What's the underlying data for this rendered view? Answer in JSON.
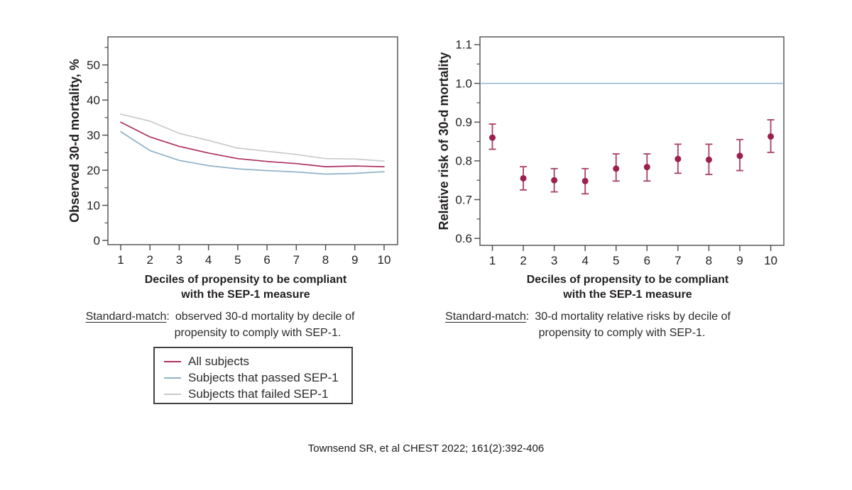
{
  "citation": "Townsend SR, et al CHEST 2022; 161(2):392-406",
  "captions": {
    "left": {
      "term": "Standard-match",
      "sep": ":",
      "text": "observed 30-d mortality by decile of",
      "line2": "propensity to comply with SEP-1."
    },
    "right": {
      "term": "Standard-match",
      "sep": ":",
      "text": "30-d mortality relative risks by decile of",
      "line2": "propensity to comply with SEP-1."
    }
  },
  "chart_data": [
    {
      "id": "observed-mortality-by-decile",
      "type": "line",
      "xlabel_lines": [
        "Deciles of propensity to be compliant",
        "with the SEP-1 measure"
      ],
      "ylabel": "Observed 30-d mortality, %",
      "categories": [
        1,
        2,
        3,
        4,
        5,
        6,
        7,
        8,
        9,
        10
      ],
      "xtick_labels": [
        "1",
        "2",
        "3",
        "4",
        "5",
        "6",
        "7",
        "8",
        "9",
        "10"
      ],
      "ylim": [
        -1.2,
        58
      ],
      "yticks": [
        0,
        10,
        20,
        30,
        40,
        50
      ],
      "ytick_labels": [
        "0",
        "10",
        "20",
        "30",
        "40",
        "50"
      ],
      "yminor_step": 5,
      "grid": false,
      "legend_position": "below",
      "series": [
        {
          "name": "All subjects",
          "color": "#ac3060",
          "values": [
            33.7,
            29.5,
            26.8,
            24.9,
            23.3,
            22.5,
            21.9,
            21.0,
            21.2,
            21.0
          ]
        },
        {
          "name": "Subjects that passed SEP-1",
          "color": "#8fb2c9",
          "values": [
            31.0,
            25.6,
            22.8,
            21.3,
            20.4,
            19.9,
            19.5,
            18.9,
            19.1,
            19.6
          ]
        },
        {
          "name": "Subjects that failed SEP-1",
          "color": "#c8cacc",
          "values": [
            36.0,
            34.0,
            30.5,
            28.5,
            26.3,
            25.4,
            24.5,
            23.3,
            23.2,
            22.6
          ]
        }
      ]
    },
    {
      "id": "relative-risk-by-decile",
      "type": "scatter",
      "xlabel_lines": [
        "Deciles of propensity to be compliant",
        "with the SEP-1 measure"
      ],
      "ylabel": "Relative risk of 30-d mortality",
      "categories": [
        1,
        2,
        3,
        4,
        5,
        6,
        7,
        8,
        9,
        10
      ],
      "xtick_labels": [
        "1",
        "2",
        "3",
        "4",
        "5",
        "6",
        "7",
        "8",
        "9",
        "10"
      ],
      "ylim": [
        0.582,
        1.12
      ],
      "yticks": [
        0.6,
        0.7,
        0.8,
        0.9,
        1.0,
        1.1
      ],
      "ytick_labels": [
        "0.6",
        "0.7",
        "0.8",
        "0.9",
        "1.0",
        "1.1"
      ],
      "yminor_step": 0.05,
      "grid": false,
      "reference_line": {
        "y": 1.0,
        "color": "#85aec8"
      },
      "marker_color": "#9c1f50",
      "errorbar_color": "#a64067",
      "points": [
        {
          "x": 1,
          "rr": 0.86,
          "lo": 0.83,
          "hi": 0.895
        },
        {
          "x": 2,
          "rr": 0.755,
          "lo": 0.725,
          "hi": 0.785
        },
        {
          "x": 3,
          "rr": 0.75,
          "lo": 0.72,
          "hi": 0.78
        },
        {
          "x": 4,
          "rr": 0.748,
          "lo": 0.715,
          "hi": 0.78
        },
        {
          "x": 5,
          "rr": 0.78,
          "lo": 0.748,
          "hi": 0.818
        },
        {
          "x": 6,
          "rr": 0.784,
          "lo": 0.748,
          "hi": 0.818
        },
        {
          "x": 7,
          "rr": 0.805,
          "lo": 0.768,
          "hi": 0.843
        },
        {
          "x": 8,
          "rr": 0.803,
          "lo": 0.765,
          "hi": 0.843
        },
        {
          "x": 9,
          "rr": 0.813,
          "lo": 0.775,
          "hi": 0.855
        },
        {
          "x": 10,
          "rr": 0.863,
          "lo": 0.822,
          "hi": 0.906
        }
      ]
    }
  ]
}
